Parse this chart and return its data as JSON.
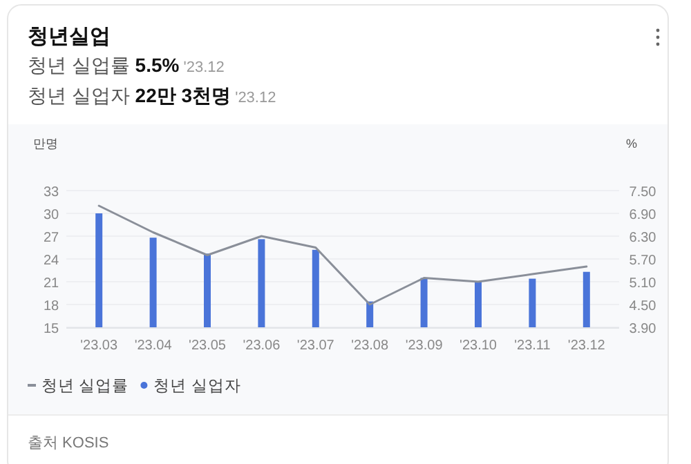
{
  "chart_data": {
    "type": "bar",
    "title": "청년실업",
    "subtitle": "청년 실업률 **5.5%** '23.12",
    "annotations": [
      "청년 실업자 **22만 3천명** '23.12",
      "출처 KOSIS"
    ],
    "ylabel": "만명",
    "y2label": "%",
    "categories": [
      "'23.03",
      "'23.04",
      "'23.05",
      "'23.06",
      "'23.07",
      "'23.08",
      "'23.09",
      "'23.10",
      "'23.11",
      "'23.12"
    ],
    "series": [
      {
        "name": "청년 실업률",
        "type": "line",
        "axis": "y2",
        "color": "#8a8f99",
        "values": [
          7.1,
          6.4,
          5.8,
          6.3,
          6.0,
          4.5,
          5.2,
          5.1,
          5.3,
          5.5
        ]
      },
      {
        "name": "청년 실업자",
        "color": "#4a74d9",
        "values": [
          30.0,
          26.8,
          24.7,
          26.6,
          25.2,
          18.4,
          21.5,
          21.0,
          21.4,
          22.3
        ]
      }
    ],
    "ylim": [
      15,
      33
    ],
    "yticks": [
      15,
      18,
      21,
      24,
      27,
      30,
      33
    ],
    "y2lim": [
      3.9,
      7.5
    ],
    "y2ticks": [
      {
        "value": 3.9,
        "label": "3.90"
      },
      {
        "value": 4.5,
        "label": "4.50"
      },
      {
        "value": 5.1,
        "label": "5.10"
      },
      {
        "value": 5.7,
        "label": "5.70"
      },
      {
        "value": 6.3,
        "label": "6.30"
      },
      {
        "value": 6.9,
        "label": "6.90"
      },
      {
        "value": 7.5,
        "label": "7.50"
      }
    ],
    "grid": "y",
    "legend": "bottom left"
  }
}
